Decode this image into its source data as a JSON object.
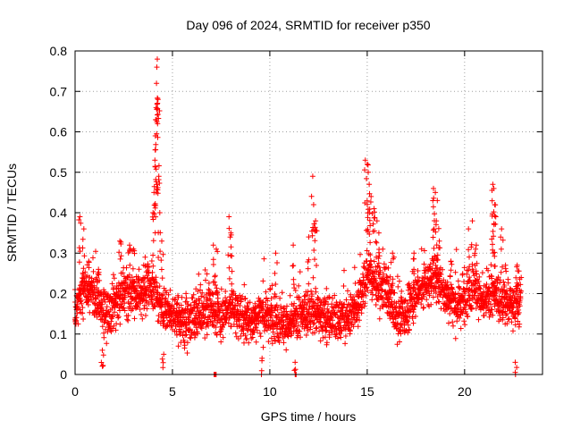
{
  "chart_data": {
    "type": "scatter",
    "title": "Day 096 of 2024, SRMTID for receiver p350",
    "xlabel": "GPS time / hours",
    "ylabel": "SRMTID / TECUs",
    "xlim": [
      0,
      24
    ],
    "ylim": [
      0,
      0.8
    ],
    "xticks": [
      0,
      5,
      10,
      15,
      20
    ],
    "yticks": [
      0,
      0.1,
      0.2,
      0.3,
      0.4,
      0.5,
      0.6,
      0.7,
      0.8
    ],
    "xtick_labels": [
      "0",
      "5",
      "10",
      "15",
      "20"
    ],
    "ytick_labels": [
      "0",
      "0.1",
      "0.2",
      "0.3",
      "0.4",
      "0.5",
      "0.6",
      "0.7",
      "0.8"
    ],
    "grid": true,
    "marker": "+",
    "color": "#ff0000",
    "time_span_hours": [
      0,
      22.9
    ],
    "sample_interval_hours": 0.02,
    "trend": [
      {
        "x": 0.0,
        "y": 0.16
      },
      {
        "x": 0.5,
        "y": 0.22
      },
      {
        "x": 1.0,
        "y": 0.19
      },
      {
        "x": 1.5,
        "y": 0.15
      },
      {
        "x": 2.0,
        "y": 0.17
      },
      {
        "x": 2.5,
        "y": 0.2
      },
      {
        "x": 3.0,
        "y": 0.2
      },
      {
        "x": 3.5,
        "y": 0.2
      },
      {
        "x": 3.9,
        "y": 0.22
      },
      {
        "x": 4.5,
        "y": 0.17
      },
      {
        "x": 5.0,
        "y": 0.15
      },
      {
        "x": 5.5,
        "y": 0.13
      },
      {
        "x": 6.0,
        "y": 0.13
      },
      {
        "x": 6.5,
        "y": 0.15
      },
      {
        "x": 7.0,
        "y": 0.17
      },
      {
        "x": 7.5,
        "y": 0.14
      },
      {
        "x": 8.0,
        "y": 0.17
      },
      {
        "x": 8.5,
        "y": 0.14
      },
      {
        "x": 9.0,
        "y": 0.13
      },
      {
        "x": 9.5,
        "y": 0.15
      },
      {
        "x": 10.0,
        "y": 0.15
      },
      {
        "x": 10.5,
        "y": 0.13
      },
      {
        "x": 11.0,
        "y": 0.12
      },
      {
        "x": 11.5,
        "y": 0.14
      },
      {
        "x": 12.0,
        "y": 0.16
      },
      {
        "x": 12.5,
        "y": 0.15
      },
      {
        "x": 13.0,
        "y": 0.13
      },
      {
        "x": 13.5,
        "y": 0.14
      },
      {
        "x": 14.0,
        "y": 0.14
      },
      {
        "x": 14.5,
        "y": 0.17
      },
      {
        "x": 15.0,
        "y": 0.25
      },
      {
        "x": 15.5,
        "y": 0.22
      },
      {
        "x": 16.0,
        "y": 0.2
      },
      {
        "x": 16.5,
        "y": 0.14
      },
      {
        "x": 17.0,
        "y": 0.15
      },
      {
        "x": 17.5,
        "y": 0.2
      },
      {
        "x": 18.0,
        "y": 0.22
      },
      {
        "x": 18.5,
        "y": 0.24
      },
      {
        "x": 19.0,
        "y": 0.2
      },
      {
        "x": 19.5,
        "y": 0.17
      },
      {
        "x": 20.0,
        "y": 0.19
      },
      {
        "x": 20.5,
        "y": 0.22
      },
      {
        "x": 21.0,
        "y": 0.17
      },
      {
        "x": 21.5,
        "y": 0.2
      },
      {
        "x": 22.0,
        "y": 0.18
      },
      {
        "x": 22.5,
        "y": 0.17
      },
      {
        "x": 22.9,
        "y": 0.18
      }
    ],
    "spikes": [
      {
        "x": 0.25,
        "y": 0.39
      },
      {
        "x": 0.45,
        "y": 0.36
      },
      {
        "x": 0.7,
        "y": 0.28
      },
      {
        "x": 1.2,
        "y": 0.26
      },
      {
        "x": 2.3,
        "y": 0.33
      },
      {
        "x": 2.8,
        "y": 0.32
      },
      {
        "x": 3.0,
        "y": 0.31
      },
      {
        "x": 3.6,
        "y": 0.29
      },
      {
        "x": 4.0,
        "y": 0.4
      },
      {
        "x": 4.05,
        "y": 0.45
      },
      {
        "x": 4.1,
        "y": 0.53
      },
      {
        "x": 4.12,
        "y": 0.59
      },
      {
        "x": 4.14,
        "y": 0.63
      },
      {
        "x": 4.16,
        "y": 0.66
      },
      {
        "x": 4.18,
        "y": 0.72
      },
      {
        "x": 4.2,
        "y": 0.76
      },
      {
        "x": 4.22,
        "y": 0.78
      },
      {
        "x": 4.26,
        "y": 0.68
      },
      {
        "x": 4.3,
        "y": 0.49
      },
      {
        "x": 4.35,
        "y": 0.4
      },
      {
        "x": 4.45,
        "y": 0.33
      },
      {
        "x": 7.1,
        "y": 0.32
      },
      {
        "x": 7.25,
        "y": 0.31
      },
      {
        "x": 7.9,
        "y": 0.39
      },
      {
        "x": 8.0,
        "y": 0.35
      },
      {
        "x": 10.3,
        "y": 0.3
      },
      {
        "x": 11.2,
        "y": 0.32
      },
      {
        "x": 12.0,
        "y": 0.34
      },
      {
        "x": 12.2,
        "y": 0.49
      },
      {
        "x": 12.25,
        "y": 0.42
      },
      {
        "x": 12.35,
        "y": 0.38
      },
      {
        "x": 14.9,
        "y": 0.53
      },
      {
        "x": 15.0,
        "y": 0.52
      },
      {
        "x": 15.05,
        "y": 0.5
      },
      {
        "x": 15.1,
        "y": 0.47
      },
      {
        "x": 15.2,
        "y": 0.44
      },
      {
        "x": 15.35,
        "y": 0.41
      },
      {
        "x": 15.5,
        "y": 0.38
      },
      {
        "x": 15.6,
        "y": 0.35
      },
      {
        "x": 15.8,
        "y": 0.31
      },
      {
        "x": 16.3,
        "y": 0.3
      },
      {
        "x": 17.4,
        "y": 0.3
      },
      {
        "x": 18.4,
        "y": 0.46
      },
      {
        "x": 18.5,
        "y": 0.45
      },
      {
        "x": 18.6,
        "y": 0.43
      },
      {
        "x": 18.55,
        "y": 0.38
      },
      {
        "x": 18.7,
        "y": 0.33
      },
      {
        "x": 19.3,
        "y": 0.28
      },
      {
        "x": 20.2,
        "y": 0.36
      },
      {
        "x": 20.4,
        "y": 0.38
      },
      {
        "x": 20.6,
        "y": 0.32
      },
      {
        "x": 21.45,
        "y": 0.47
      },
      {
        "x": 21.5,
        "y": 0.46
      },
      {
        "x": 21.55,
        "y": 0.42
      },
      {
        "x": 21.6,
        "y": 0.39
      },
      {
        "x": 21.9,
        "y": 0.36
      },
      {
        "x": 22.1,
        "y": 0.27
      },
      {
        "x": 22.7,
        "y": 0.27
      },
      {
        "x": 7.2,
        "y": 0.0
      },
      {
        "x": 11.3,
        "y": 0.03
      },
      {
        "x": 22.6,
        "y": 0.03
      },
      {
        "x": 4.55,
        "y": 0.05
      },
      {
        "x": 9.6,
        "y": 0.04
      },
      {
        "x": 1.4,
        "y": 0.06
      }
    ]
  }
}
